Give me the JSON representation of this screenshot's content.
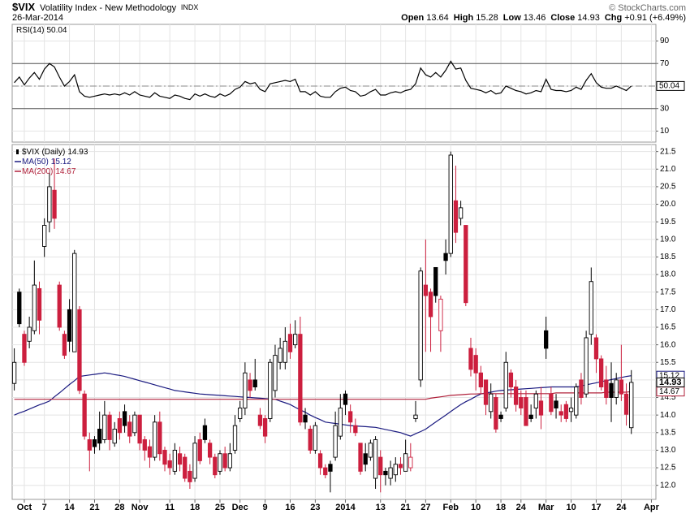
{
  "chart_data": [
    {
      "type": "candlestick",
      "symbol": "$VIX",
      "title": "Volatility Index - New Methodology",
      "exchange": "INDX",
      "date": "26-Mar-2014",
      "credit": "© StockCharts.com",
      "quote_labels": [
        "Open",
        "High",
        "Low",
        "Close",
        "Chg"
      ],
      "change": {
        "value": 0.91,
        "label": "+0.91"
      },
      "change_pct": {
        "value": 6.49,
        "label": "(+6.49%)"
      },
      "name": "$VIX (Daily)",
      "categories": [
        null,
        null,
        "Oct",
        null,
        null,
        null,
        "7",
        null,
        null,
        null,
        null,
        "14",
        null,
        null,
        null,
        null,
        "21",
        null,
        null,
        null,
        null,
        "28",
        null,
        null,
        null,
        "Nov",
        null,
        null,
        null,
        null,
        null,
        "11",
        null,
        null,
        null,
        null,
        "18",
        null,
        null,
        null,
        null,
        "25",
        null,
        null,
        null,
        "Dec",
        null,
        null,
        null,
        null,
        "9",
        null,
        null,
        null,
        null,
        "16",
        null,
        null,
        null,
        null,
        "23",
        null,
        null,
        null,
        null,
        null,
        "2014",
        null,
        null,
        null,
        null,
        null,
        null,
        "13",
        null,
        null,
        null,
        null,
        "21",
        null,
        null,
        null,
        "27",
        null,
        null,
        null,
        null,
        "Feb",
        null,
        null,
        null,
        null,
        "10",
        null,
        null,
        null,
        null,
        "18",
        null,
        null,
        null,
        "24",
        null,
        null,
        null,
        null,
        "Mar",
        null,
        null,
        null,
        null,
        "10",
        null,
        null,
        null,
        null,
        "17",
        null,
        null,
        null,
        null,
        "24",
        null,
        null,
        null,
        null,
        null,
        "Apr"
      ],
      "open": [
        14.9,
        17.5,
        16.3,
        16.1,
        16.4,
        17.6,
        18.8,
        19.5,
        20.4,
        17.7,
        16.3,
        17.0,
        15.8,
        17.0,
        14.6,
        13.3,
        13.3,
        13.6,
        13.3,
        14.0,
        13.2,
        13.9,
        14.1,
        13.8,
        13.5,
        14.0,
        13.3,
        13.1,
        12.8,
        13.8,
        13.0,
        12.7,
        12.4,
        12.9,
        12.8,
        12.4,
        12.2,
        13.3,
        13.7,
        13.2,
        12.8,
        12.4,
        12.9,
        12.5,
        13.0,
        13.9,
        14.2,
        15.0,
        15.0,
        14.0,
        13.9,
        13.9,
        14.7,
        15.5,
        15.5,
        16.3,
        16.0,
        16.3,
        14.0,
        13.6,
        13.0,
        12.9,
        12.5,
        12.6,
        12.8,
        13.4,
        14.6,
        14.1,
        13.7,
        13.2,
        12.9,
        12.8,
        12.2,
        12.8,
        12.4,
        12.2,
        12.3,
        12.6,
        12.4,
        12.5,
        13.9,
        15.0,
        17.7,
        17.5,
        18.2,
        16.4,
        18.6,
        18.6,
        20.1,
        19.6,
        19.4,
        15.9,
        15.7,
        15.2,
        15.0,
        14.1,
        14.5,
        14.0,
        14.2,
        15.2,
        14.8,
        14.5,
        14.5,
        14.0,
        14.2,
        14.4,
        16.4,
        14.6,
        14.4,
        14.1,
        14.3,
        14.1,
        14.0,
        15.0,
        14.6,
        16.3,
        16.2,
        15.6,
        15.0,
        14.9,
        14.5,
        15.0,
        14.6,
        13.64,
        null,
        null,
        null,
        null
      ],
      "high": [
        15.9,
        17.6,
        16.4,
        16.8,
        18.4,
        17.8,
        19.6,
        20.9,
        21.3,
        17.8,
        16.4,
        17.3,
        18.7,
        17.1,
        14.7,
        13.5,
        13.4,
        14.1,
        14.4,
        14.1,
        13.8,
        14.1,
        14.3,
        14.0,
        14.1,
        14.0,
        13.4,
        13.3,
        14.0,
        14.1,
        13.1,
        12.9,
        13.2,
        13.1,
        12.9,
        12.6,
        13.4,
        13.5,
        13.9,
        13.3,
        12.9,
        13.0,
        13.1,
        13.2,
        14.0,
        14.4,
        15.5,
        15.2,
        15.6,
        14.2,
        14.0,
        15.6,
        16.0,
        16.2,
        16.5,
        16.6,
        16.7,
        16.8,
        14.2,
        13.7,
        13.8,
        13.0,
        12.6,
        12.7,
        14.1,
        14.6,
        14.7,
        14.3,
        13.9,
        13.2,
        13.2,
        13.3,
        13.4,
        13.0,
        12.5,
        12.7,
        12.8,
        12.8,
        13.3,
        13.2,
        14.4,
        18.2,
        19.0,
        17.6,
        18.2,
        17.4,
        19.0,
        21.5,
        21.1,
        20.1,
        19.4,
        16.2,
        15.9,
        15.4,
        15.0,
        14.9,
        14.6,
        14.1,
        15.8,
        15.3,
        15.0,
        14.7,
        14.7,
        14.3,
        14.7,
        14.8,
        16.8,
        14.8,
        14.6,
        14.3,
        14.4,
        14.5,
        14.9,
        15.2,
        16.4,
        18.2,
        16.3,
        15.7,
        15.4,
        15.5,
        15.2,
        16.0,
        14.9,
        15.28,
        null,
        null,
        null,
        null
      ],
      "low": [
        14.7,
        16.5,
        15.4,
        15.9,
        16.3,
        16.3,
        18.5,
        19.2,
        19.3,
        16.4,
        15.6,
        15.8,
        15.8,
        14.6,
        13.3,
        12.4,
        12.9,
        13.0,
        13.2,
        13.0,
        13.1,
        13.3,
        13.5,
        13.2,
        13.4,
        13.0,
        12.7,
        12.5,
        12.7,
        12.7,
        12.4,
        12.3,
        12.3,
        12.4,
        12.1,
        11.9,
        12.1,
        12.6,
        13.2,
        12.6,
        12.2,
        12.3,
        12.4,
        12.4,
        12.9,
        13.8,
        14.0,
        14.5,
        14.7,
        13.6,
        13.2,
        13.8,
        14.5,
        15.3,
        15.3,
        15.6,
        15.9,
        13.7,
        13.6,
        12.9,
        12.9,
        12.3,
        12.2,
        11.8,
        12.7,
        13.3,
        14.0,
        13.5,
        13.4,
        12.3,
        12.4,
        12.7,
        11.9,
        11.8,
        12.0,
        12.0,
        12.1,
        12.3,
        12.4,
        12.4,
        13.8,
        14.8,
        15.8,
        15.8,
        17.2,
        15.8,
        18.0,
        18.5,
        18.9,
        19.4,
        17.1,
        15.1,
        14.7,
        14.6,
        14.0,
        13.9,
        13.5,
        13.8,
        14.1,
        14.5,
        14.1,
        14.0,
        13.7,
        13.8,
        13.9,
        13.6,
        15.6,
        14.0,
        13.9,
        13.8,
        13.8,
        13.8,
        13.9,
        14.3,
        14.5,
        16.0,
        15.2,
        14.7,
        14.3,
        13.8,
        14.3,
        14.4,
        13.7,
        13.46,
        null,
        null,
        null,
        null
      ],
      "close": [
        15.5,
        16.6,
        15.5,
        16.5,
        17.7,
        16.7,
        19.4,
        20.5,
        19.6,
        16.5,
        15.7,
        16.1,
        18.6,
        14.7,
        13.4,
        13.0,
        13.1,
        13.2,
        14.0,
        13.3,
        13.6,
        13.5,
        13.7,
        13.4,
        14.0,
        13.2,
        13.0,
        12.8,
        13.8,
        12.9,
        12.6,
        12.5,
        13.0,
        12.6,
        12.2,
        12.1,
        13.2,
        12.7,
        13.3,
        12.8,
        12.3,
        12.9,
        12.5,
        12.9,
        13.7,
        14.2,
        15.2,
        14.7,
        14.8,
        13.7,
        13.4,
        15.5,
        15.7,
        15.9,
        16.1,
        15.8,
        16.3,
        13.8,
        13.8,
        13.0,
        13.7,
        12.5,
        12.3,
        12.4,
        13.7,
        14.2,
        14.3,
        13.8,
        13.5,
        12.4,
        12.6,
        13.2,
        13.3,
        12.3,
        12.3,
        12.5,
        12.6,
        12.5,
        12.9,
        12.8,
        14.0,
        18.1,
        17.4,
        16.8,
        17.4,
        17.3,
        18.4,
        21.4,
        19.2,
        19.9,
        17.2,
        15.3,
        15.2,
        14.8,
        14.3,
        14.6,
        13.6,
        13.9,
        15.5,
        14.8,
        14.3,
        14.2,
        13.7,
        13.9,
        14.6,
        14.0,
        15.9,
        14.1,
        14.2,
        14.0,
        13.9,
        14.2,
        14.8,
        14.5,
        16.2,
        17.8,
        15.6,
        14.8,
        14.5,
        14.5,
        15.0,
        14.6,
        14.02,
        14.93,
        null,
        null,
        null,
        null
      ],
      "up_color": "#000000",
      "down_color": "#cc1f3e",
      "series": [
        {
          "name": "MA(50)",
          "color": "#1a1a80",
          "values": [
            14.0,
            14.06,
            14.11,
            14.17,
            14.23,
            14.29,
            14.34,
            14.4,
            14.52,
            14.63,
            14.75,
            14.87,
            14.98,
            15.1,
            15.12,
            15.14,
            15.16,
            15.18,
            15.2,
            15.18,
            15.15,
            15.13,
            15.1,
            15.06,
            15.02,
            14.98,
            14.94,
            14.9,
            14.86,
            14.82,
            14.78,
            14.74,
            14.7,
            14.68,
            14.66,
            14.64,
            14.62,
            14.6,
            14.59,
            14.58,
            14.57,
            14.56,
            14.55,
            14.54,
            14.53,
            14.52,
            14.51,
            14.5,
            14.49,
            14.48,
            14.47,
            14.46,
            14.45,
            14.4,
            14.35,
            14.3,
            14.22,
            14.15,
            14.08,
            14.0,
            13.93,
            13.87,
            13.8,
            13.78,
            13.76,
            13.74,
            13.72,
            13.7,
            13.69,
            13.68,
            13.67,
            13.66,
            13.65,
            13.62,
            13.59,
            13.56,
            13.53,
            13.5,
            13.45,
            13.4,
            13.47,
            13.53,
            13.6,
            13.7,
            13.8,
            13.9,
            14.0,
            14.1,
            14.2,
            14.3,
            14.38,
            14.45,
            14.53,
            14.6,
            14.63,
            14.65,
            14.68,
            14.7,
            14.71,
            14.72,
            14.73,
            14.74,
            14.75,
            14.76,
            14.77,
            14.78,
            14.79,
            14.8,
            14.8,
            14.8,
            14.8,
            14.8,
            14.8,
            14.83,
            14.86,
            14.89,
            14.92,
            14.95,
            14.98,
            15.01,
            15.04,
            15.07,
            15.1,
            15.12,
            null,
            null,
            null,
            null
          ]
        },
        {
          "name": "MA(200)",
          "color": "#b0203a",
          "values": [
            14.45,
            14.45,
            14.45,
            14.45,
            14.45,
            14.45,
            14.45,
            14.45,
            14.45,
            14.45,
            14.45,
            14.45,
            14.45,
            14.45,
            14.45,
            14.45,
            14.45,
            14.45,
            14.45,
            14.45,
            14.45,
            14.45,
            14.45,
            14.45,
            14.45,
            14.45,
            14.45,
            14.45,
            14.45,
            14.45,
            14.45,
            14.45,
            14.45,
            14.45,
            14.45,
            14.45,
            14.45,
            14.45,
            14.45,
            14.45,
            14.45,
            14.45,
            14.45,
            14.45,
            14.45,
            14.45,
            14.45,
            14.45,
            14.45,
            14.45,
            14.45,
            14.45,
            14.45,
            14.45,
            14.45,
            14.45,
            14.45,
            14.45,
            14.45,
            14.45,
            14.45,
            14.45,
            14.45,
            14.45,
            14.45,
            14.45,
            14.45,
            14.45,
            14.45,
            14.45,
            14.45,
            14.45,
            14.45,
            14.45,
            14.45,
            14.45,
            14.45,
            14.45,
            14.45,
            14.45,
            14.45,
            14.45,
            14.45,
            14.48,
            14.5,
            14.52,
            14.54,
            14.56,
            14.57,
            14.58,
            14.59,
            14.6,
            14.6,
            14.61,
            14.61,
            14.61,
            14.61,
            14.61,
            14.61,
            14.61,
            14.61,
            14.61,
            14.61,
            14.61,
            14.61,
            14.61,
            14.61,
            14.61,
            14.63,
            14.63,
            14.63,
            14.63,
            14.63,
            14.63,
            14.63,
            14.63,
            14.63,
            14.63,
            14.65,
            14.65,
            14.65,
            14.65,
            14.65,
            14.67,
            null,
            null,
            null,
            null
          ]
        }
      ],
      "ylim": [
        11.6,
        21.7
      ],
      "yticks": [
        {
          "value": 12,
          "label": "12.0"
        },
        12.5,
        {
          "value": 13,
          "label": "13.0"
        },
        13.5,
        {
          "value": 14,
          "label": "14.0"
        },
        14.5,
        {
          "value": 15,
          "label": "15.0"
        },
        15.5,
        {
          "value": 16,
          "label": "16.0"
        },
        16.5,
        {
          "value": 17,
          "label": "17.0"
        },
        17.5,
        {
          "value": 18,
          "label": "18.0"
        },
        18.5,
        {
          "value": 19,
          "label": "19.0"
        },
        19.5,
        {
          "value": 20,
          "label": "20.0"
        },
        20.5,
        {
          "value": 21,
          "label": "21.0"
        },
        21.5
      ],
      "grid": true
    },
    {
      "type": "line",
      "series": [
        {
          "name": "RSI(14)",
          "color": "#000000",
          "values": [
            53,
            58,
            51,
            57,
            62,
            56,
            65,
            70,
            67,
            58,
            50,
            54,
            60,
            45,
            41,
            40,
            41,
            42,
            43,
            42,
            43,
            42,
            44,
            42,
            45,
            42,
            41,
            40,
            44,
            41,
            40,
            39,
            42,
            41,
            39,
            38,
            43,
            41,
            43,
            41,
            40,
            43,
            41,
            43,
            47,
            49,
            54,
            52,
            53,
            47,
            45,
            52,
            53,
            54,
            55,
            54,
            56,
            45,
            45,
            42,
            45,
            41,
            40,
            40,
            45,
            48,
            49,
            46,
            45,
            41,
            42,
            45,
            47,
            42,
            42,
            44,
            45,
            44,
            46,
            47,
            52,
            66,
            60,
            58,
            62,
            58,
            64,
            72,
            65,
            66,
            55,
            48,
            47,
            46,
            44,
            46,
            43,
            44,
            50,
            48,
            46,
            45,
            43,
            44,
            46,
            45,
            56,
            47,
            46,
            46,
            45,
            46,
            49,
            47,
            55,
            61,
            53,
            49,
            48,
            48,
            50,
            48,
            46,
            50.04,
            null,
            null,
            null,
            null
          ]
        }
      ],
      "ylim": [
        0,
        100
      ],
      "yticks": [
        10,
        30,
        50,
        70,
        90
      ],
      "reference_lines": [
        70,
        50,
        30
      ],
      "grid": true
    }
  ]
}
